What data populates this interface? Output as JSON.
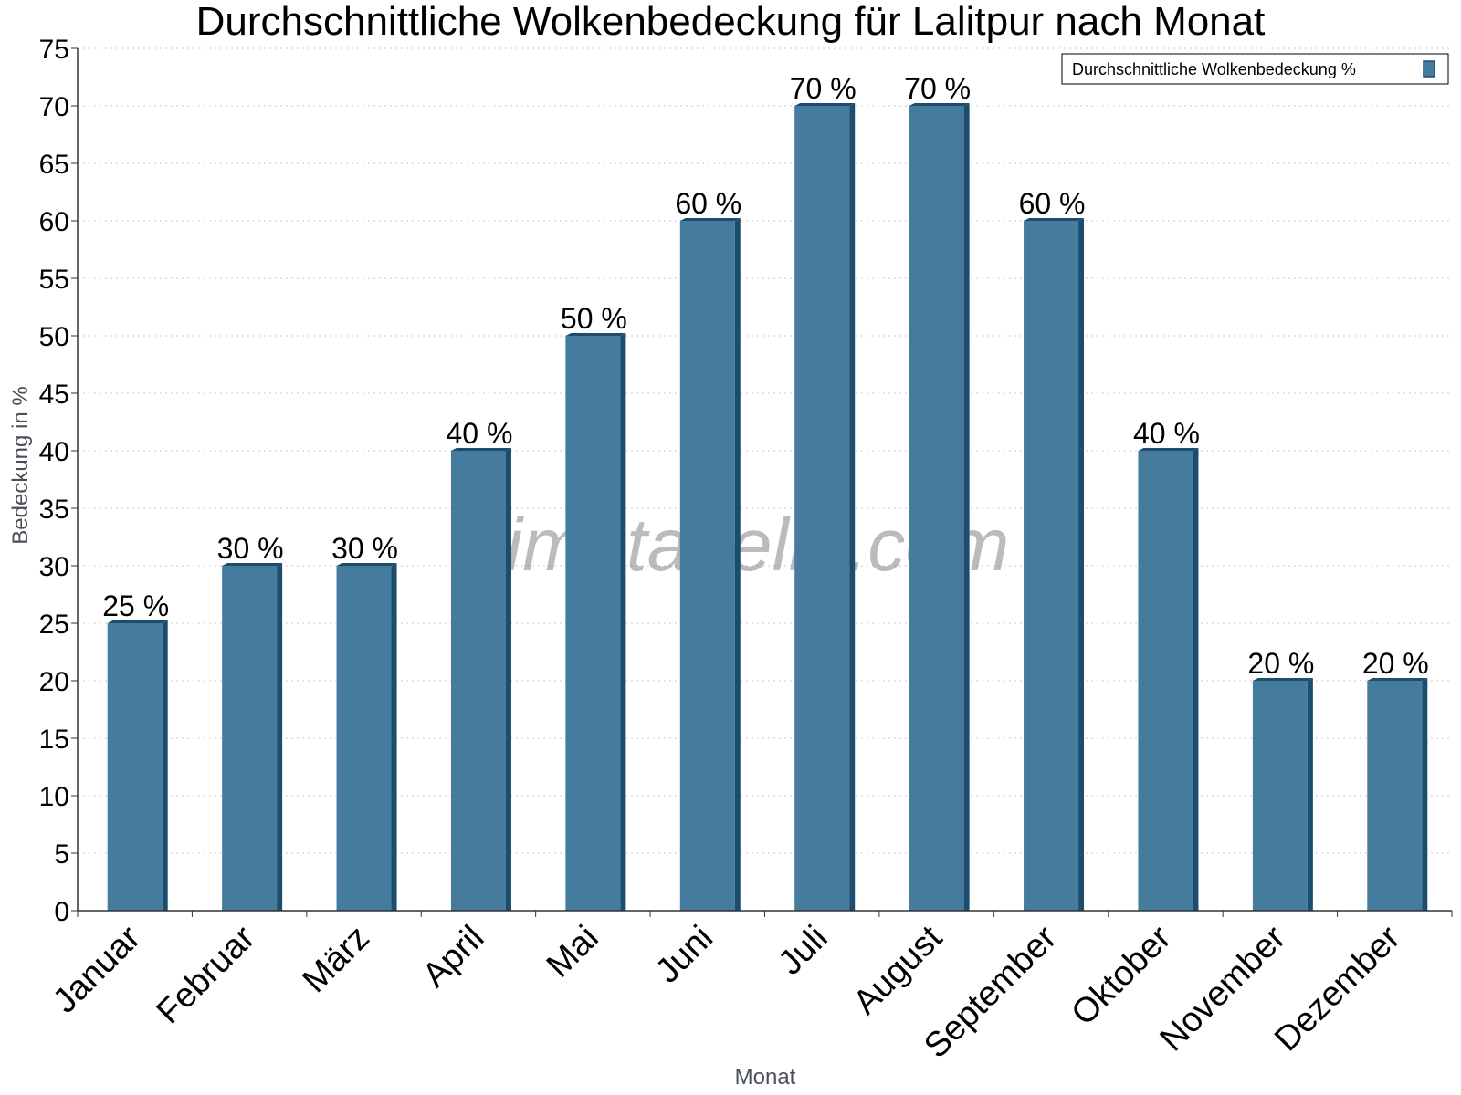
{
  "chart_data": {
    "type": "bar",
    "title": "Durchschnittliche Wolkenbedeckung für Lalitpur nach Monat",
    "xlabel": "Monat",
    "ylabel": "Bedeckung in %",
    "categories": [
      "Januar",
      "Februar",
      "März",
      "April",
      "Mai",
      "Juni",
      "Juli",
      "August",
      "September",
      "Oktober",
      "November",
      "Dezember"
    ],
    "series": [
      {
        "name": "Durchschnittliche Wolkenbedeckung %",
        "values": [
          25,
          30,
          30,
          40,
          50,
          60,
          70,
          70,
          60,
          40,
          20,
          20
        ],
        "data_labels": [
          "25 %",
          "30 %",
          "30 %",
          "40 %",
          "50 %",
          "60 %",
          "70 %",
          "70 %",
          "60 %",
          "40 %",
          "20 %",
          "20 %"
        ]
      }
    ],
    "ylim": [
      0,
      75
    ],
    "yticks": [
      0,
      5,
      10,
      15,
      20,
      25,
      30,
      35,
      40,
      45,
      50,
      55,
      60,
      65,
      70,
      75
    ],
    "grid": true,
    "legend_position": "top-right",
    "colors": {
      "bar": "#457b9d",
      "bar_side": "#1d4d6e",
      "gridline": "#c8c8c8"
    },
    "watermark": "klimatabelle.com"
  }
}
